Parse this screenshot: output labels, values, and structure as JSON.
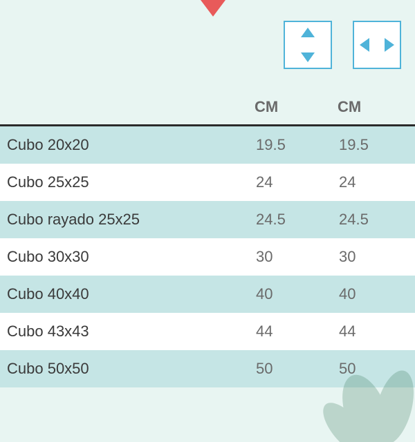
{
  "decor": {
    "flag_color": "#e85a5a",
    "icon_border": "#4fb3d9",
    "icon_bg": "#ffffff",
    "arrow_color": "#4fb3d9"
  },
  "table": {
    "type": "table",
    "background_color": "#e8f5f2",
    "stripe_a_color": "#c5e5e5",
    "stripe_b_color": "#ffffff",
    "header_border_color": "#2a2a2a",
    "text_color": "#3a3a3a",
    "value_color": "#6a6a6a",
    "header_fontsize": 22,
    "body_fontsize": 22,
    "columns": [
      {
        "label": "",
        "width": "60%",
        "align": "left"
      },
      {
        "label": "CM",
        "width": "20%",
        "align": "left"
      },
      {
        "label": "CM",
        "width": "20%",
        "align": "left"
      }
    ],
    "rows": [
      {
        "name": "Cubo 20x20",
        "v1": "19.5",
        "v2": "19.5",
        "stripe": "a"
      },
      {
        "name": "Cubo 25x25",
        "v1": "24",
        "v2": "24",
        "stripe": "b"
      },
      {
        "name": "Cubo rayado 25x25",
        "v1": "24.5",
        "v2": "24.5",
        "stripe": "a"
      },
      {
        "name": "Cubo 30x30",
        "v1": "30",
        "v2": "30",
        "stripe": "b"
      },
      {
        "name": "Cubo 40x40",
        "v1": "40",
        "v2": "40",
        "stripe": "a"
      },
      {
        "name": "Cubo 43x43",
        "v1": "44",
        "v2": "44",
        "stripe": "b"
      },
      {
        "name": "Cubo 50x50",
        "v1": "50",
        "v2": "50",
        "stripe": "a"
      }
    ]
  }
}
